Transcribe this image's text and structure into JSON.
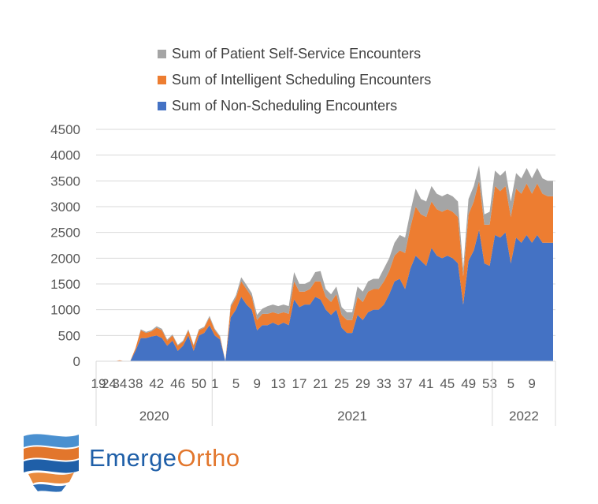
{
  "chart_data": {
    "type": "area",
    "stacked": true,
    "title": "",
    "xlabel": "",
    "ylabel": "",
    "ylim": [
      0,
      4500
    ],
    "yticks": [
      0,
      500,
      1000,
      1500,
      2000,
      2500,
      3000,
      3500,
      4000,
      4500
    ],
    "grid": true,
    "legend_position": "top",
    "x_tick_labels": [
      {
        "label": "19",
        "index": 0
      },
      {
        "label": "24",
        "index": 2
      },
      {
        "label": "34",
        "index": 4
      },
      {
        "label": "38",
        "index": 7
      },
      {
        "label": "42",
        "index": 11
      },
      {
        "label": "46",
        "index": 15
      },
      {
        "label": "50",
        "index": 19
      },
      {
        "label": "1",
        "index": 22
      },
      {
        "label": "5",
        "index": 26
      },
      {
        "label": "9",
        "index": 30
      },
      {
        "label": "13",
        "index": 34
      },
      {
        "label": "17",
        "index": 38
      },
      {
        "label": "21",
        "index": 42
      },
      {
        "label": "25",
        "index": 46
      },
      {
        "label": "29",
        "index": 50
      },
      {
        "label": "33",
        "index": 54
      },
      {
        "label": "37",
        "index": 58
      },
      {
        "label": "41",
        "index": 62
      },
      {
        "label": "45",
        "index": 66
      },
      {
        "label": "49",
        "index": 70
      },
      {
        "label": "53",
        "index": 74
      },
      {
        "label": "5",
        "index": 78
      },
      {
        "label": "9",
        "index": 82
      }
    ],
    "year_groups": [
      {
        "label": "2020",
        "start": 0,
        "end": 21
      },
      {
        "label": "2021",
        "start": 22,
        "end": 74
      },
      {
        "label": "2022",
        "start": 75,
        "end": 86
      }
    ],
    "series": [
      {
        "name": "Sum of Non-Scheduling Encounters",
        "color": "#4472c4",
        "values": [
          0,
          0,
          0,
          0,
          0,
          0,
          0,
          200,
          450,
          450,
          480,
          500,
          450,
          300,
          400,
          200,
          300,
          500,
          200,
          500,
          550,
          700,
          500,
          420,
          0,
          850,
          1000,
          1250,
          1100,
          1000,
          600,
          700,
          700,
          750,
          700,
          750,
          700,
          1200,
          1050,
          1100,
          1100,
          1250,
          1200,
          1000,
          900,
          1000,
          650,
          550,
          550,
          900,
          800,
          950,
          1000,
          1000,
          1100,
          1300,
          1550,
          1600,
          1400,
          1800,
          2050,
          1950,
          1850,
          2200,
          2050,
          2000,
          2050,
          2000,
          1900,
          1100,
          1950,
          2150,
          2550,
          1900,
          1850,
          2450,
          2400,
          2500,
          1900,
          2400,
          2300,
          2450,
          2300,
          2450,
          2300,
          2300,
          2300
        ]
      },
      {
        "name": "Sum of Intelligent Scheduling Encounters",
        "color": "#ed7d31",
        "values": [
          0,
          0,
          0,
          0,
          20,
          0,
          0,
          50,
          150,
          100,
          100,
          150,
          150,
          100,
          100,
          100,
          80,
          100,
          100,
          100,
          100,
          150,
          100,
          50,
          0,
          200,
          230,
          300,
          300,
          250,
          200,
          220,
          220,
          200,
          220,
          200,
          220,
          350,
          300,
          250,
          300,
          300,
          350,
          250,
          250,
          300,
          250,
          250,
          250,
          350,
          350,
          400,
          400,
          400,
          450,
          450,
          500,
          550,
          700,
          800,
          950,
          900,
          950,
          900,
          900,
          900,
          900,
          900,
          900,
          550,
          900,
          950,
          950,
          750,
          800,
          950,
          900,
          900,
          900,
          950,
          950,
          1000,
          950,
          1000,
          950,
          900,
          900
        ]
      },
      {
        "name": "Sum of Patient Self-Service Encounters",
        "color": "#a5a5a5",
        "values": [
          0,
          0,
          0,
          0,
          0,
          0,
          0,
          0,
          20,
          20,
          20,
          30,
          30,
          20,
          20,
          20,
          20,
          20,
          20,
          20,
          20,
          30,
          30,
          20,
          0,
          40,
          50,
          80,
          80,
          70,
          100,
          100,
          150,
          150,
          150,
          150,
          150,
          180,
          150,
          150,
          150,
          180,
          200,
          150,
          150,
          150,
          150,
          150,
          150,
          200,
          200,
          200,
          200,
          200,
          250,
          250,
          250,
          300,
          300,
          300,
          350,
          300,
          300,
          300,
          300,
          300,
          300,
          300,
          300,
          150,
          300,
          300,
          300,
          200,
          250,
          300,
          300,
          300,
          300,
          300,
          300,
          300,
          300,
          300,
          300,
          300,
          300
        ]
      }
    ]
  },
  "logo": {
    "word1": "Emerge",
    "word2": "Ortho"
  }
}
